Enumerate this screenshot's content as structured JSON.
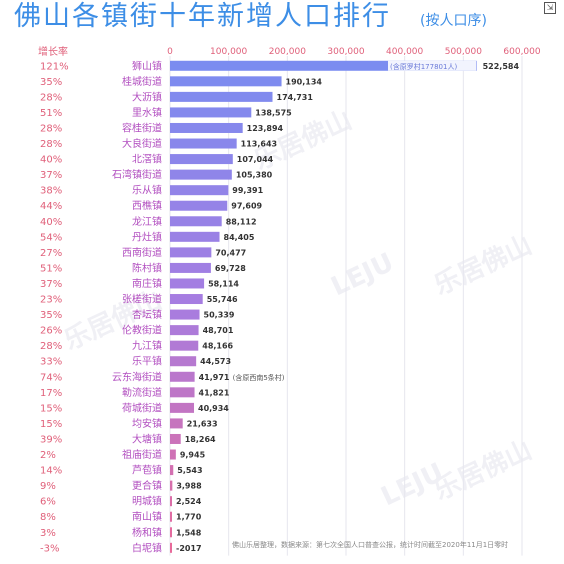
{
  "title": "佛山各镇街十年新增人口排行",
  "subtitle": "(按人口序)",
  "growth_header": "增长率",
  "watermark_text": "乐居佛山",
  "watermark_logo": "LEJU",
  "source_note": "佛山乐居整理，数据来源：第七次全国人口普查公报，统计时间截至2020年11月1日零时",
  "chart_data": {
    "type": "bar",
    "orientation": "horizontal",
    "xlim": [
      0,
      600000
    ],
    "x_ticks": [
      "0",
      "100,000",
      "200,000",
      "300,000",
      "400,000",
      "500,000",
      "600,000"
    ],
    "grid": true,
    "categories": [
      "狮山镇",
      "桂城街道",
      "大沥镇",
      "里水镇",
      "容桂街道",
      "大良街道",
      "北滘镇",
      "石湾镇街道",
      "乐从镇",
      "西樵镇",
      "龙江镇",
      "丹灶镇",
      "西南街道",
      "陈村镇",
      "南庄镇",
      "张槎街道",
      "杏坛镇",
      "伦教街道",
      "九江镇",
      "乐平镇",
      "云东海街道",
      "勒流街道",
      "荷城街道",
      "均安镇",
      "大塘镇",
      "祖庙街道",
      "芦苞镇",
      "更合镇",
      "明城镇",
      "南山镇",
      "杨和镇",
      "白坭镇"
    ],
    "growth_rates": [
      "121%",
      "35%",
      "28%",
      "51%",
      "28%",
      "28%",
      "40%",
      "37%",
      "38%",
      "44%",
      "40%",
      "54%",
      "27%",
      "51%",
      "37%",
      "23%",
      "35%",
      "26%",
      "28%",
      "33%",
      "74%",
      "17%",
      "15%",
      "15%",
      "39%",
      "2%",
      "14%",
      "9%",
      "6%",
      "8%",
      "3%",
      "-3%"
    ],
    "values": [
      522584,
      190134,
      174731,
      138575,
      123894,
      113643,
      107044,
      105380,
      99391,
      97609,
      88112,
      84405,
      70477,
      69728,
      58114,
      55746,
      50339,
      48701,
      48166,
      44573,
      41971,
      41821,
      40934,
      21633,
      18264,
      9945,
      5543,
      3988,
      2524,
      1770,
      1548,
      -2017
    ],
    "value_labels": [
      "522,584",
      "190,134",
      "174,731",
      "138,575",
      "123,894",
      "113,643",
      "107,044",
      "105,380",
      "99,391",
      "97,609",
      "88,112",
      "84,405",
      "70,477",
      "69,728",
      "58,114",
      "55,746",
      "50,339",
      "48,701",
      "48,166",
      "44,573",
      "41,971",
      "41,821",
      "40,934",
      "21,633",
      "18,264",
      "9,945",
      "5,543",
      "3,988",
      "2,524",
      "1,770",
      "1,548",
      "-2017"
    ],
    "annotations": [
      {
        "index": 0,
        "text": "(含原罗村177801人)"
      },
      {
        "index": 20,
        "text": "(含原西南5条村)"
      }
    ],
    "colors": {
      "top": "#7b8cf0",
      "mid": "#a77de0",
      "bottom": "#e86a9a",
      "growth_text": "#e0607a",
      "category_text": "#b24fc0",
      "title": "#3d8ee6"
    }
  }
}
